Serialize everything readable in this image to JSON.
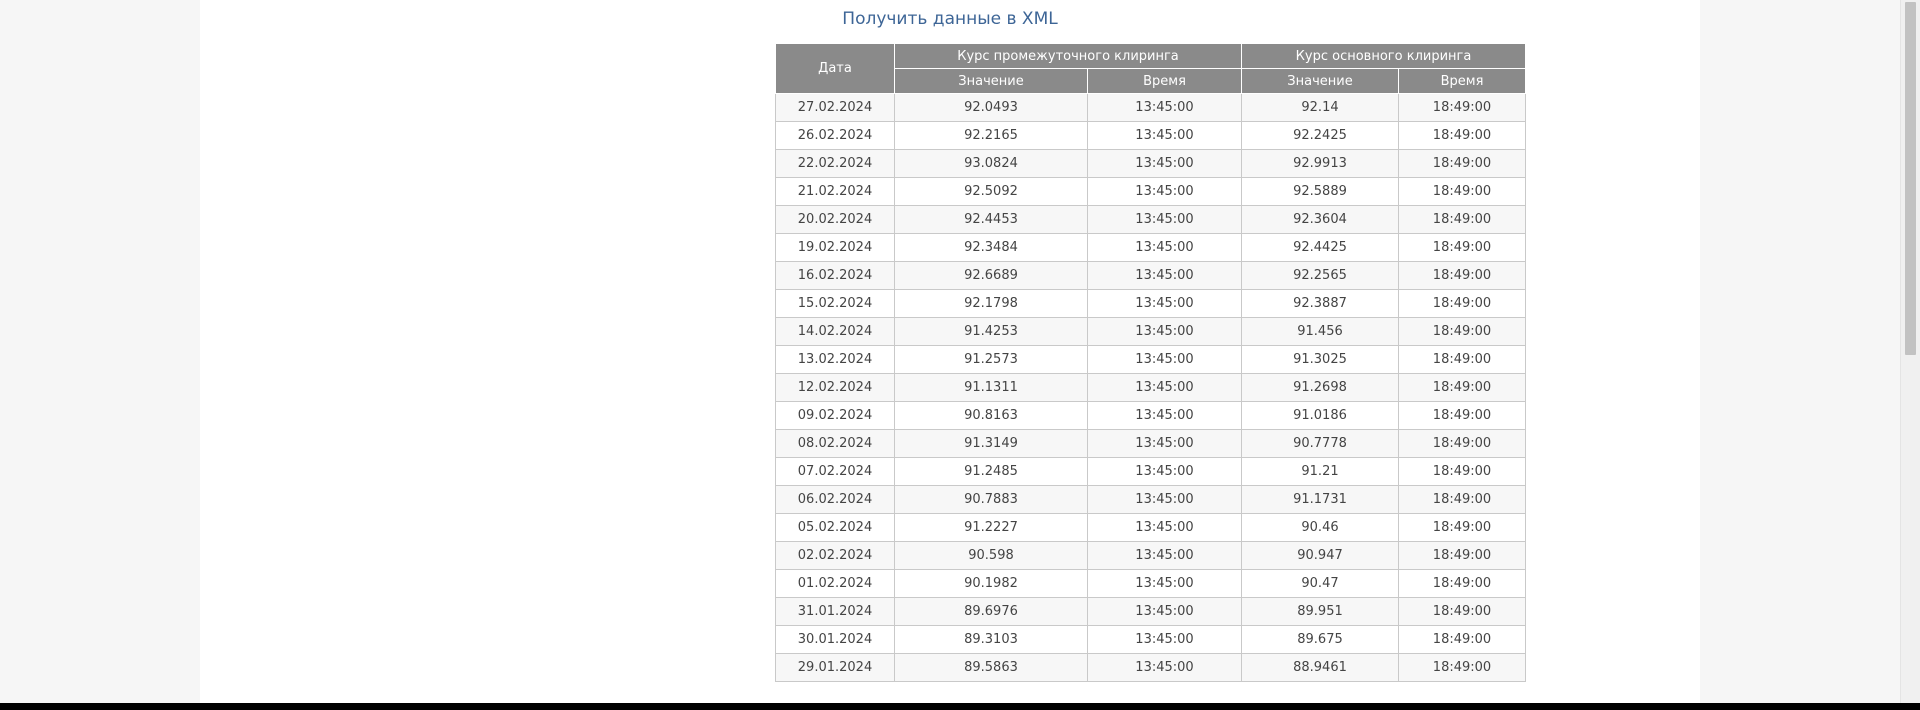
{
  "xml_link": {
    "label": "Получить данные в XML"
  },
  "table": {
    "headers": {
      "date": "Дата",
      "intermediate_group": "Курс промежуточного клиринга",
      "main_group": "Курс основного клиринга",
      "value": "Значение",
      "time": "Время"
    },
    "rows": [
      {
        "date": "27.02.2024",
        "inter_value": "92.0493",
        "inter_time": "13:45:00",
        "main_value": "92.14",
        "main_time": "18:49:00"
      },
      {
        "date": "26.02.2024",
        "inter_value": "92.2165",
        "inter_time": "13:45:00",
        "main_value": "92.2425",
        "main_time": "18:49:00"
      },
      {
        "date": "22.02.2024",
        "inter_value": "93.0824",
        "inter_time": "13:45:00",
        "main_value": "92.9913",
        "main_time": "18:49:00"
      },
      {
        "date": "21.02.2024",
        "inter_value": "92.5092",
        "inter_time": "13:45:00",
        "main_value": "92.5889",
        "main_time": "18:49:00"
      },
      {
        "date": "20.02.2024",
        "inter_value": "92.4453",
        "inter_time": "13:45:00",
        "main_value": "92.3604",
        "main_time": "18:49:00"
      },
      {
        "date": "19.02.2024",
        "inter_value": "92.3484",
        "inter_time": "13:45:00",
        "main_value": "92.4425",
        "main_time": "18:49:00"
      },
      {
        "date": "16.02.2024",
        "inter_value": "92.6689",
        "inter_time": "13:45:00",
        "main_value": "92.2565",
        "main_time": "18:49:00"
      },
      {
        "date": "15.02.2024",
        "inter_value": "92.1798",
        "inter_time": "13:45:00",
        "main_value": "92.3887",
        "main_time": "18:49:00"
      },
      {
        "date": "14.02.2024",
        "inter_value": "91.4253",
        "inter_time": "13:45:00",
        "main_value": "91.456",
        "main_time": "18:49:00"
      },
      {
        "date": "13.02.2024",
        "inter_value": "91.2573",
        "inter_time": "13:45:00",
        "main_value": "91.3025",
        "main_time": "18:49:00"
      },
      {
        "date": "12.02.2024",
        "inter_value": "91.1311",
        "inter_time": "13:45:00",
        "main_value": "91.2698",
        "main_time": "18:49:00"
      },
      {
        "date": "09.02.2024",
        "inter_value": "90.8163",
        "inter_time": "13:45:00",
        "main_value": "91.0186",
        "main_time": "18:49:00"
      },
      {
        "date": "08.02.2024",
        "inter_value": "91.3149",
        "inter_time": "13:45:00",
        "main_value": "90.7778",
        "main_time": "18:49:00"
      },
      {
        "date": "07.02.2024",
        "inter_value": "91.2485",
        "inter_time": "13:45:00",
        "main_value": "91.21",
        "main_time": "18:49:00"
      },
      {
        "date": "06.02.2024",
        "inter_value": "90.7883",
        "inter_time": "13:45:00",
        "main_value": "91.1731",
        "main_time": "18:49:00"
      },
      {
        "date": "05.02.2024",
        "inter_value": "91.2227",
        "inter_time": "13:45:00",
        "main_value": "90.46",
        "main_time": "18:49:00"
      },
      {
        "date": "02.02.2024",
        "inter_value": "90.598",
        "inter_time": "13:45:00",
        "main_value": "90.947",
        "main_time": "18:49:00"
      },
      {
        "date": "01.02.2024",
        "inter_value": "90.1982",
        "inter_time": "13:45:00",
        "main_value": "90.47",
        "main_time": "18:49:00"
      },
      {
        "date": "31.01.2024",
        "inter_value": "89.6976",
        "inter_time": "13:45:00",
        "main_value": "89.951",
        "main_time": "18:49:00"
      },
      {
        "date": "30.01.2024",
        "inter_value": "89.3103",
        "inter_time": "13:45:00",
        "main_value": "89.675",
        "main_time": "18:49:00"
      },
      {
        "date": "29.01.2024",
        "inter_value": "89.5863",
        "inter_time": "13:45:00",
        "main_value": "88.9461",
        "main_time": "18:49:00"
      }
    ]
  },
  "colors": {
    "link": "#3d6596",
    "header_bg": "#8a8a8a",
    "stripe": "#f7f7f7"
  }
}
